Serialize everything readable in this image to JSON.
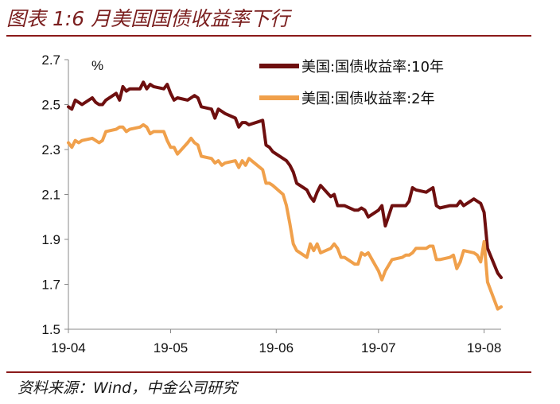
{
  "figure": {
    "title": "图表 1:6 月美国国债收益率下行",
    "source": "资料来源：Wind，中金公司研究"
  },
  "chart_data": {
    "type": "line",
    "unit": "%",
    "ylim": [
      1.5,
      2.7
    ],
    "yticks": [
      "1.5",
      "1.7",
      "1.9",
      "2.1",
      "2.3",
      "2.5",
      "2.7"
    ],
    "xticks": [
      "19-04",
      "19-05",
      "19-06",
      "19-07",
      "19-08"
    ],
    "xtick_dates": [
      "2019-04-01",
      "2019-05-01",
      "2019-06-01",
      "2019-07-01",
      "2019-08-01"
    ],
    "xlim": [
      "2019-04-01",
      "2019-08-06"
    ],
    "legend_position": "top-right",
    "series": [
      {
        "name": "美国:国债收益率:10年",
        "color": "#6e0f0f",
        "points": [
          [
            "2019-04-01",
            2.49
          ],
          [
            "2019-04-02",
            2.48
          ],
          [
            "2019-04-03",
            2.52
          ],
          [
            "2019-04-04",
            2.51
          ],
          [
            "2019-04-05",
            2.5
          ],
          [
            "2019-04-08",
            2.53
          ],
          [
            "2019-04-09",
            2.51
          ],
          [
            "2019-04-10",
            2.5
          ],
          [
            "2019-04-11",
            2.5
          ],
          [
            "2019-04-12",
            2.52
          ],
          [
            "2019-04-15",
            2.55
          ],
          [
            "2019-04-16",
            2.52
          ],
          [
            "2019-04-17",
            2.58
          ],
          [
            "2019-04-18",
            2.56
          ],
          [
            "2019-04-19",
            2.57
          ],
          [
            "2019-04-22",
            2.57
          ],
          [
            "2019-04-23",
            2.6
          ],
          [
            "2019-04-24",
            2.57
          ],
          [
            "2019-04-25",
            2.59
          ],
          [
            "2019-04-26",
            2.58
          ],
          [
            "2019-04-29",
            2.57
          ],
          [
            "2019-04-30",
            2.59
          ],
          [
            "2019-05-01",
            2.55
          ],
          [
            "2019-05-02",
            2.52
          ],
          [
            "2019-05-03",
            2.53
          ],
          [
            "2019-05-06",
            2.52
          ],
          [
            "2019-05-07",
            2.53
          ],
          [
            "2019-05-08",
            2.54
          ],
          [
            "2019-05-09",
            2.53
          ],
          [
            "2019-05-10",
            2.49
          ],
          [
            "2019-05-13",
            2.48
          ],
          [
            "2019-05-14",
            2.44
          ],
          [
            "2019-05-15",
            2.48
          ],
          [
            "2019-05-16",
            2.47
          ],
          [
            "2019-05-17",
            2.46
          ],
          [
            "2019-05-20",
            2.44
          ],
          [
            "2019-05-21",
            2.4
          ],
          [
            "2019-05-22",
            2.42
          ],
          [
            "2019-05-23",
            2.42
          ],
          [
            "2019-05-24",
            2.41
          ],
          [
            "2019-05-28",
            2.43
          ],
          [
            "2019-05-29",
            2.32
          ],
          [
            "2019-05-30",
            2.31
          ],
          [
            "2019-05-31",
            2.29
          ],
          [
            "2019-06-03",
            2.26
          ],
          [
            "2019-06-04",
            2.25
          ],
          [
            "2019-06-05",
            2.23
          ],
          [
            "2019-06-06",
            2.2
          ],
          [
            "2019-06-07",
            2.15
          ],
          [
            "2019-06-10",
            2.12
          ],
          [
            "2019-06-11",
            2.09
          ],
          [
            "2019-06-12",
            2.07
          ],
          [
            "2019-06-13",
            2.11
          ],
          [
            "2019-06-14",
            2.14
          ],
          [
            "2019-06-17",
            2.09
          ],
          [
            "2019-06-18",
            2.1
          ],
          [
            "2019-06-19",
            2.05
          ],
          [
            "2019-06-20",
            2.05
          ],
          [
            "2019-06-21",
            2.05
          ],
          [
            "2019-06-24",
            2.03
          ],
          [
            "2019-06-25",
            2.03
          ],
          [
            "2019-06-26",
            2.04
          ],
          [
            "2019-06-27",
            2.03
          ],
          [
            "2019-06-28",
            2.0
          ],
          [
            "2019-07-01",
            2.03
          ],
          [
            "2019-07-02",
            2.05
          ],
          [
            "2019-07-03",
            1.96
          ],
          [
            "2019-07-05",
            2.05
          ],
          [
            "2019-07-08",
            2.05
          ],
          [
            "2019-07-09",
            2.05
          ],
          [
            "2019-07-10",
            2.07
          ],
          [
            "2019-07-11",
            2.13
          ],
          [
            "2019-07-12",
            2.12
          ],
          [
            "2019-07-15",
            2.11
          ],
          [
            "2019-07-16",
            2.12
          ],
          [
            "2019-07-17",
            2.13
          ],
          [
            "2019-07-18",
            2.05
          ],
          [
            "2019-07-19",
            2.04
          ],
          [
            "2019-07-22",
            2.05
          ],
          [
            "2019-07-23",
            2.05
          ],
          [
            "2019-07-24",
            2.05
          ],
          [
            "2019-07-25",
            2.07
          ],
          [
            "2019-07-26",
            2.05
          ],
          [
            "2019-07-29",
            2.08
          ],
          [
            "2019-07-30",
            2.07
          ],
          [
            "2019-07-31",
            2.06
          ],
          [
            "2019-08-01",
            2.02
          ],
          [
            "2019-08-02",
            1.86
          ],
          [
            "2019-08-05",
            1.75
          ],
          [
            "2019-08-06",
            1.73
          ]
        ]
      },
      {
        "name": "美国:国债收益率:2年",
        "color": "#f0a04b",
        "points": [
          [
            "2019-04-01",
            2.33
          ],
          [
            "2019-04-02",
            2.31
          ],
          [
            "2019-04-03",
            2.34
          ],
          [
            "2019-04-04",
            2.33
          ],
          [
            "2019-04-05",
            2.34
          ],
          [
            "2019-04-08",
            2.35
          ],
          [
            "2019-04-09",
            2.34
          ],
          [
            "2019-04-10",
            2.33
          ],
          [
            "2019-04-11",
            2.34
          ],
          [
            "2019-04-12",
            2.38
          ],
          [
            "2019-04-15",
            2.39
          ],
          [
            "2019-04-16",
            2.4
          ],
          [
            "2019-04-17",
            2.4
          ],
          [
            "2019-04-18",
            2.38
          ],
          [
            "2019-04-19",
            2.39
          ],
          [
            "2019-04-22",
            2.4
          ],
          [
            "2019-04-23",
            2.41
          ],
          [
            "2019-04-24",
            2.4
          ],
          [
            "2019-04-25",
            2.37
          ],
          [
            "2019-04-26",
            2.38
          ],
          [
            "2019-04-29",
            2.38
          ],
          [
            "2019-04-30",
            2.34
          ],
          [
            "2019-05-01",
            2.31
          ],
          [
            "2019-05-02",
            2.31
          ],
          [
            "2019-05-03",
            2.28
          ],
          [
            "2019-05-06",
            2.33
          ],
          [
            "2019-05-07",
            2.35
          ],
          [
            "2019-05-08",
            2.33
          ],
          [
            "2019-05-09",
            2.32
          ],
          [
            "2019-05-10",
            2.27
          ],
          [
            "2019-05-13",
            2.26
          ],
          [
            "2019-05-14",
            2.24
          ],
          [
            "2019-05-15",
            2.25
          ],
          [
            "2019-05-16",
            2.23
          ],
          [
            "2019-05-17",
            2.24
          ],
          [
            "2019-05-20",
            2.25
          ],
          [
            "2019-05-21",
            2.22
          ],
          [
            "2019-05-22",
            2.25
          ],
          [
            "2019-05-23",
            2.23
          ],
          [
            "2019-05-24",
            2.26
          ],
          [
            "2019-05-28",
            2.21
          ],
          [
            "2019-05-29",
            2.15
          ],
          [
            "2019-05-30",
            2.15
          ],
          [
            "2019-05-31",
            2.14
          ],
          [
            "2019-06-03",
            2.1
          ],
          [
            "2019-06-04",
            2.05
          ],
          [
            "2019-06-05",
            1.97
          ],
          [
            "2019-06-06",
            1.88
          ],
          [
            "2019-06-07",
            1.85
          ],
          [
            "2019-06-10",
            1.82
          ],
          [
            "2019-06-11",
            1.88
          ],
          [
            "2019-06-12",
            1.85
          ],
          [
            "2019-06-13",
            1.88
          ],
          [
            "2019-06-14",
            1.84
          ],
          [
            "2019-06-17",
            1.86
          ],
          [
            "2019-06-18",
            1.88
          ],
          [
            "2019-06-19",
            1.86
          ],
          [
            "2019-06-20",
            1.82
          ],
          [
            "2019-06-21",
            1.82
          ],
          [
            "2019-06-24",
            1.79
          ],
          [
            "2019-06-25",
            1.79
          ],
          [
            "2019-06-26",
            1.84
          ],
          [
            "2019-06-27",
            1.83
          ],
          [
            "2019-06-28",
            1.84
          ],
          [
            "2019-07-01",
            1.76
          ],
          [
            "2019-07-02",
            1.72
          ],
          [
            "2019-07-03",
            1.76
          ],
          [
            "2019-07-05",
            1.81
          ],
          [
            "2019-07-08",
            1.82
          ],
          [
            "2019-07-09",
            1.83
          ],
          [
            "2019-07-10",
            1.83
          ],
          [
            "2019-07-11",
            1.84
          ],
          [
            "2019-07-12",
            1.86
          ],
          [
            "2019-07-15",
            1.86
          ],
          [
            "2019-07-16",
            1.87
          ],
          [
            "2019-07-17",
            1.87
          ],
          [
            "2019-07-18",
            1.81
          ],
          [
            "2019-07-19",
            1.81
          ],
          [
            "2019-07-22",
            1.82
          ],
          [
            "2019-07-23",
            1.83
          ],
          [
            "2019-07-24",
            1.77
          ],
          [
            "2019-07-25",
            1.8
          ],
          [
            "2019-07-26",
            1.85
          ],
          [
            "2019-07-29",
            1.84
          ],
          [
            "2019-07-30",
            1.83
          ],
          [
            "2019-07-31",
            1.8
          ],
          [
            "2019-08-01",
            1.89
          ],
          [
            "2019-08-02",
            1.71
          ],
          [
            "2019-08-05",
            1.59
          ],
          [
            "2019-08-06",
            1.6
          ]
        ]
      }
    ]
  }
}
